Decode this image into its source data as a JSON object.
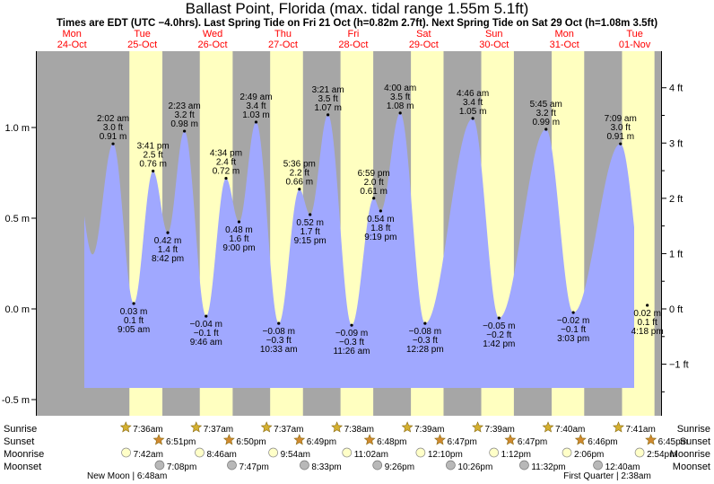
{
  "title": "Ballast Point, Florida (max. tidal range 1.55m 5.1ft)",
  "subtitle": "Times are EDT (UTC −4.0hrs). Last Spring Tide on Fri 21 Oct (h=0.82m 2.7ft). Next Spring Tide on Sat 29 Oct (h=1.08m 3.5ft)",
  "colors": {
    "night": "#a6a6a6",
    "day": "#ffffc0",
    "water": "#a0a8ff",
    "day_label": "#ff0000",
    "sun_icon": "#d4b030",
    "moonrise_icon": "#ffffc8",
    "moonset_icon": "#b8b8b8"
  },
  "days": [
    {
      "dow": "Mon",
      "date": "24-Oct"
    },
    {
      "dow": "Tue",
      "date": "25-Oct"
    },
    {
      "dow": "Wed",
      "date": "26-Oct"
    },
    {
      "dow": "Thu",
      "date": "27-Oct"
    },
    {
      "dow": "Fri",
      "date": "28-Oct"
    },
    {
      "dow": "Sat",
      "date": "29-Oct"
    },
    {
      "dow": "Sun",
      "date": "30-Oct"
    },
    {
      "dow": "Mon",
      "date": "31-Oct"
    },
    {
      "dow": "Tue",
      "date": "01-Nov"
    }
  ],
  "chart_data": {
    "type": "area",
    "ylabel_left_unit": "m",
    "ylabel_right_unit": "ft",
    "ylim_m": [
      -0.55,
      1.35
    ],
    "left_ticks": [
      "-0.5 m",
      "0.0 m",
      "0.5 m",
      "1.0 m"
    ],
    "left_tick_values": [
      -0.5,
      0.0,
      0.5,
      1.0
    ],
    "right_ticks": [
      "−1 ft",
      "0 ft",
      "1 ft",
      "2 ft",
      "3 ft",
      "4 ft"
    ],
    "right_tick_values": [
      -1,
      0,
      1,
      2,
      3,
      4
    ],
    "x_unit": "hours since 00:00 24-Oct",
    "tides": [
      {
        "t": 26.03,
        "type": "high",
        "time": "2:02 am",
        "ft": "3.0 ft",
        "m": "0.91 m",
        "h": 0.91
      },
      {
        "t": 33.08,
        "type": "low",
        "time": "9:05 am",
        "ft": "0.1 ft",
        "m": "0.03 m",
        "h": 0.03
      },
      {
        "t": 39.68,
        "type": "high",
        "time": "3:41 pm",
        "ft": "2.5 ft",
        "m": "0.76 m",
        "h": 0.76
      },
      {
        "t": 44.7,
        "type": "low",
        "time": "8:42 pm",
        "ft": "1.4 ft",
        "m": "0.42 m",
        "h": 0.42
      },
      {
        "t": 50.38,
        "type": "high",
        "time": "2:23 am",
        "ft": "3.2 ft",
        "m": "0.98 m",
        "h": 0.98
      },
      {
        "t": 57.77,
        "type": "low",
        "time": "9:46 am",
        "ft": "−0.1 ft",
        "m": "−0.04 m",
        "h": -0.04
      },
      {
        "t": 64.57,
        "type": "high",
        "time": "4:34 pm",
        "ft": "2.4 ft",
        "m": "0.72 m",
        "h": 0.72
      },
      {
        "t": 69.0,
        "type": "low",
        "time": "9:00 pm",
        "ft": "1.6 ft",
        "m": "0.48 m",
        "h": 0.48
      },
      {
        "t": 74.82,
        "type": "high",
        "time": "2:49 am",
        "ft": "3.4 ft",
        "m": "1.03 m",
        "h": 1.03
      },
      {
        "t": 82.55,
        "type": "low",
        "time": "10:33 am",
        "ft": "−0.3 ft",
        "m": "−0.08 m",
        "h": -0.08
      },
      {
        "t": 89.6,
        "type": "high",
        "time": "5:36 pm",
        "ft": "2.2 ft",
        "m": "0.66 m",
        "h": 0.66
      },
      {
        "t": 93.25,
        "type": "low",
        "time": "9:15 pm",
        "ft": "1.7 ft",
        "m": "0.52 m",
        "h": 0.52
      },
      {
        "t": 99.35,
        "type": "high",
        "time": "3:21 am",
        "ft": "3.5 ft",
        "m": "1.07 m",
        "h": 1.07
      },
      {
        "t": 107.43,
        "type": "low",
        "time": "11:26 am",
        "ft": "−0.3 ft",
        "m": "−0.09 m",
        "h": -0.09
      },
      {
        "t": 114.98,
        "type": "high",
        "time": "6:59 pm",
        "ft": "2.0 ft",
        "m": "0.61 m",
        "h": 0.61
      },
      {
        "t": 117.32,
        "type": "low",
        "time": "9:19 pm",
        "ft": "1.8 ft",
        "m": "0.54 m",
        "h": 0.54
      },
      {
        "t": 124.0,
        "type": "high",
        "time": "4:00 am",
        "ft": "3.5 ft",
        "m": "1.08 m",
        "h": 1.08
      },
      {
        "t": 132.47,
        "type": "low",
        "time": "12:28 pm",
        "ft": "−0.3 ft",
        "m": "−0.08 m",
        "h": -0.08
      },
      {
        "t": 148.77,
        "type": "high",
        "time": "4:46 am",
        "ft": "3.4 ft",
        "m": "1.05 m",
        "h": 1.05
      },
      {
        "t": 157.7,
        "type": "low",
        "time": "1:42 pm",
        "ft": "−0.2 ft",
        "m": "−0.05 m",
        "h": -0.05
      },
      {
        "t": 173.75,
        "type": "high",
        "time": "5:45 am",
        "ft": "3.2 ft",
        "m": "0.99 m",
        "h": 0.99
      },
      {
        "t": 183.05,
        "type": "low",
        "time": "3:03 pm",
        "ft": "−0.1 ft",
        "m": "−0.02 m",
        "h": -0.02
      },
      {
        "t": 199.15,
        "type": "high",
        "time": "7:09 am",
        "ft": "3.0 ft",
        "m": "0.91 m",
        "h": 0.91
      },
      {
        "t": 208.3,
        "type": "low",
        "time": "4:18 pm",
        "ft": "0.1 ft",
        "m": "0.02 m",
        "h": 0.02
      }
    ]
  },
  "rows": {
    "labels": [
      "Sunrise",
      "Sunset",
      "Moonrise",
      "Moonset"
    ],
    "sunrise": [
      {
        "t": 31.6,
        "text": "7:36am"
      },
      {
        "t": 55.62,
        "text": "7:37am"
      },
      {
        "t": 79.62,
        "text": "7:37am"
      },
      {
        "t": 103.63,
        "text": "7:38am"
      },
      {
        "t": 127.65,
        "text": "7:39am"
      },
      {
        "t": 151.65,
        "text": "7:39am"
      },
      {
        "t": 175.67,
        "text": "7:40am"
      },
      {
        "t": 199.68,
        "text": "7:41am"
      }
    ],
    "sunset": [
      {
        "t": 42.85,
        "text": "6:51pm"
      },
      {
        "t": 66.83,
        "text": "6:50pm"
      },
      {
        "t": 90.82,
        "text": "6:49pm"
      },
      {
        "t": 114.8,
        "text": "6:48pm"
      },
      {
        "t": 138.78,
        "text": "6:47pm"
      },
      {
        "t": 162.78,
        "text": "6:47pm"
      },
      {
        "t": 186.77,
        "text": "6:46pm"
      },
      {
        "t": 210.75,
        "text": "6:45pm"
      }
    ],
    "moonrise": [
      {
        "t": 31.7,
        "text": "7:42am"
      },
      {
        "t": 56.77,
        "text": "8:46am"
      },
      {
        "t": 81.9,
        "text": "9:54am"
      },
      {
        "t": 107.03,
        "text": "11:02am"
      },
      {
        "t": 132.17,
        "text": "12:10pm"
      },
      {
        "t": 157.2,
        "text": "1:12pm"
      },
      {
        "t": 182.1,
        "text": "2:06pm"
      },
      {
        "t": 206.9,
        "text": "2:54pm"
      }
    ],
    "moonset": [
      {
        "t": 43.13,
        "text": "7:08pm"
      },
      {
        "t": 67.78,
        "text": "7:47pm"
      },
      {
        "t": 92.55,
        "text": "8:33pm"
      },
      {
        "t": 117.43,
        "text": "9:26pm"
      },
      {
        "t": 142.43,
        "text": "10:26pm"
      },
      {
        "t": 167.53,
        "text": "11:32pm"
      },
      {
        "t": 192.67,
        "text": "12:40am"
      }
    ]
  },
  "moon_phases": [
    {
      "t": 30.8,
      "text": "New Moon | 6:48am"
    },
    {
      "t": 194.63,
      "text": "First Quarter | 2:38am"
    }
  ]
}
